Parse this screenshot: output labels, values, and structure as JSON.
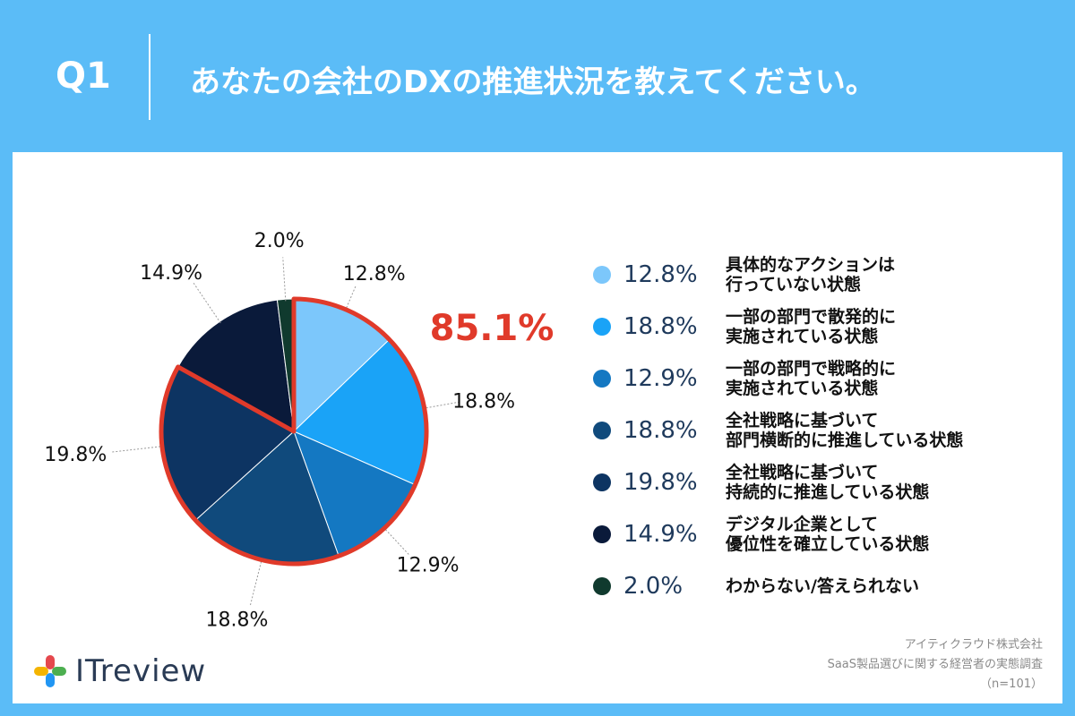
{
  "header": {
    "q_label": "Q1",
    "question": "あなたの会社のDXの推進状況を教えてください。"
  },
  "chart_data": {
    "type": "pie",
    "title": "",
    "slices": [
      {
        "label": "具体的なアクションは\n行っていない状態",
        "value": 12.8,
        "pct_text": "12.8%",
        "color": "#7cc7fb"
      },
      {
        "label": "一部の部門で散発的に\n実施されている状態",
        "value": 18.8,
        "pct_text": "18.8%",
        "color": "#1aa3f7"
      },
      {
        "label": "一部の部門で戦略的に\n実施されている状態",
        "value": 12.9,
        "pct_text": "12.9%",
        "color": "#1478c2"
      },
      {
        "label": "全社戦略に基づいて\n部門横断的に推進している状態",
        "value": 18.8,
        "pct_text": "18.8%",
        "color": "#104a7c"
      },
      {
        "label": "全社戦略に基づいて\n持続的に推進している状態",
        "value": 19.8,
        "pct_text": "19.8%",
        "color": "#0d3462"
      },
      {
        "label": "デジタル企業として\n優位性を確立している状態",
        "value": 14.9,
        "pct_text": "14.9%",
        "color": "#0a1a3a"
      },
      {
        "label": "わからない/答えられない",
        "value": 2.0,
        "pct_text": "2.0%",
        "color": "#103a2e"
      }
    ],
    "highlight": {
      "text": "85.1%",
      "color": "#e03a2a"
    }
  },
  "footer": {
    "logo_text": "ITreview",
    "source_company": "アイティクラウド株式会社",
    "source_survey": "SaaS製品選びに関する経営者の実態調査",
    "source_n": "（n=101）"
  }
}
